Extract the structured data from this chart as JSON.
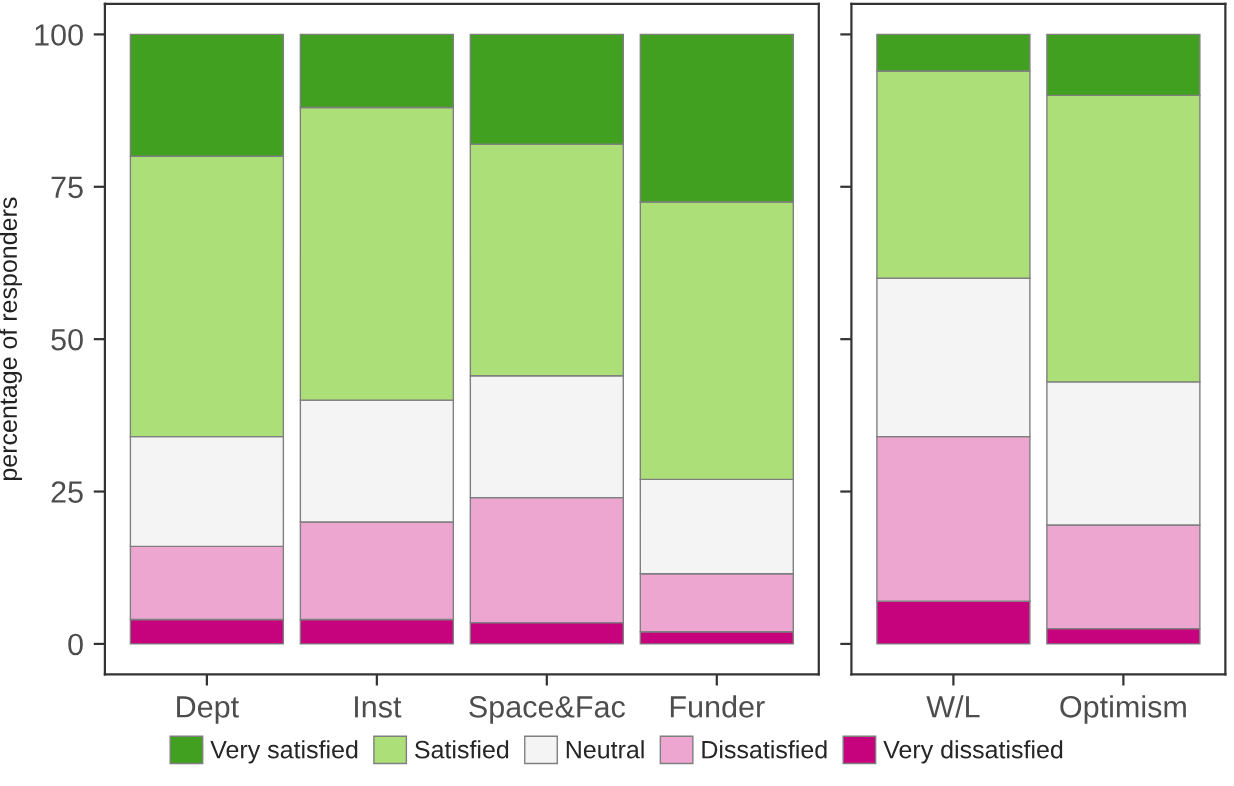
{
  "chart_data": [
    {
      "type": "bar",
      "stacked": true,
      "ylabel": "percentage of responders",
      "categories": [
        "Dept",
        "Inst",
        "Space&Fac",
        "Funder"
      ],
      "ylim": [
        -5,
        105
      ],
      "yticks": [
        0,
        25,
        50,
        75,
        100
      ],
      "grid": false,
      "legend": "bottom",
      "series": [
        {
          "name": "Very dissatisfied",
          "color": "#c6037d",
          "values": [
            4,
            4,
            3.5,
            2
          ]
        },
        {
          "name": "Dissatisfied",
          "color": "#eca6d0",
          "values": [
            12,
            16,
            20.5,
            9.5
          ]
        },
        {
          "name": "Neutral",
          "color": "#f4f4f4",
          "values": [
            18,
            20,
            20,
            15.5
          ]
        },
        {
          "name": "Satisfied",
          "color": "#acdf78",
          "values": [
            46,
            48,
            38,
            45.5
          ]
        },
        {
          "name": "Very satisfied",
          "color": "#41a01f",
          "values": [
            20,
            12,
            18,
            27.5
          ]
        }
      ]
    },
    {
      "type": "bar",
      "stacked": true,
      "categories": [
        "W/L",
        "Optimism"
      ],
      "ylim": [
        -5,
        105
      ],
      "yticks": [
        0,
        25,
        50,
        75,
        100
      ],
      "tick_labels": "x",
      "grid": false,
      "series": [
        {
          "color": "#c6037d",
          "values": [
            7,
            2.5
          ]
        },
        {
          "color": "#eca6d0",
          "values": [
            27,
            17
          ]
        },
        {
          "color": "#f4f4f4",
          "values": [
            26,
            23.5
          ]
        },
        {
          "color": "#acdf78",
          "values": [
            34,
            47
          ]
        },
        {
          "color": "#41a01f",
          "values": [
            6,
            10
          ]
        }
      ]
    }
  ]
}
